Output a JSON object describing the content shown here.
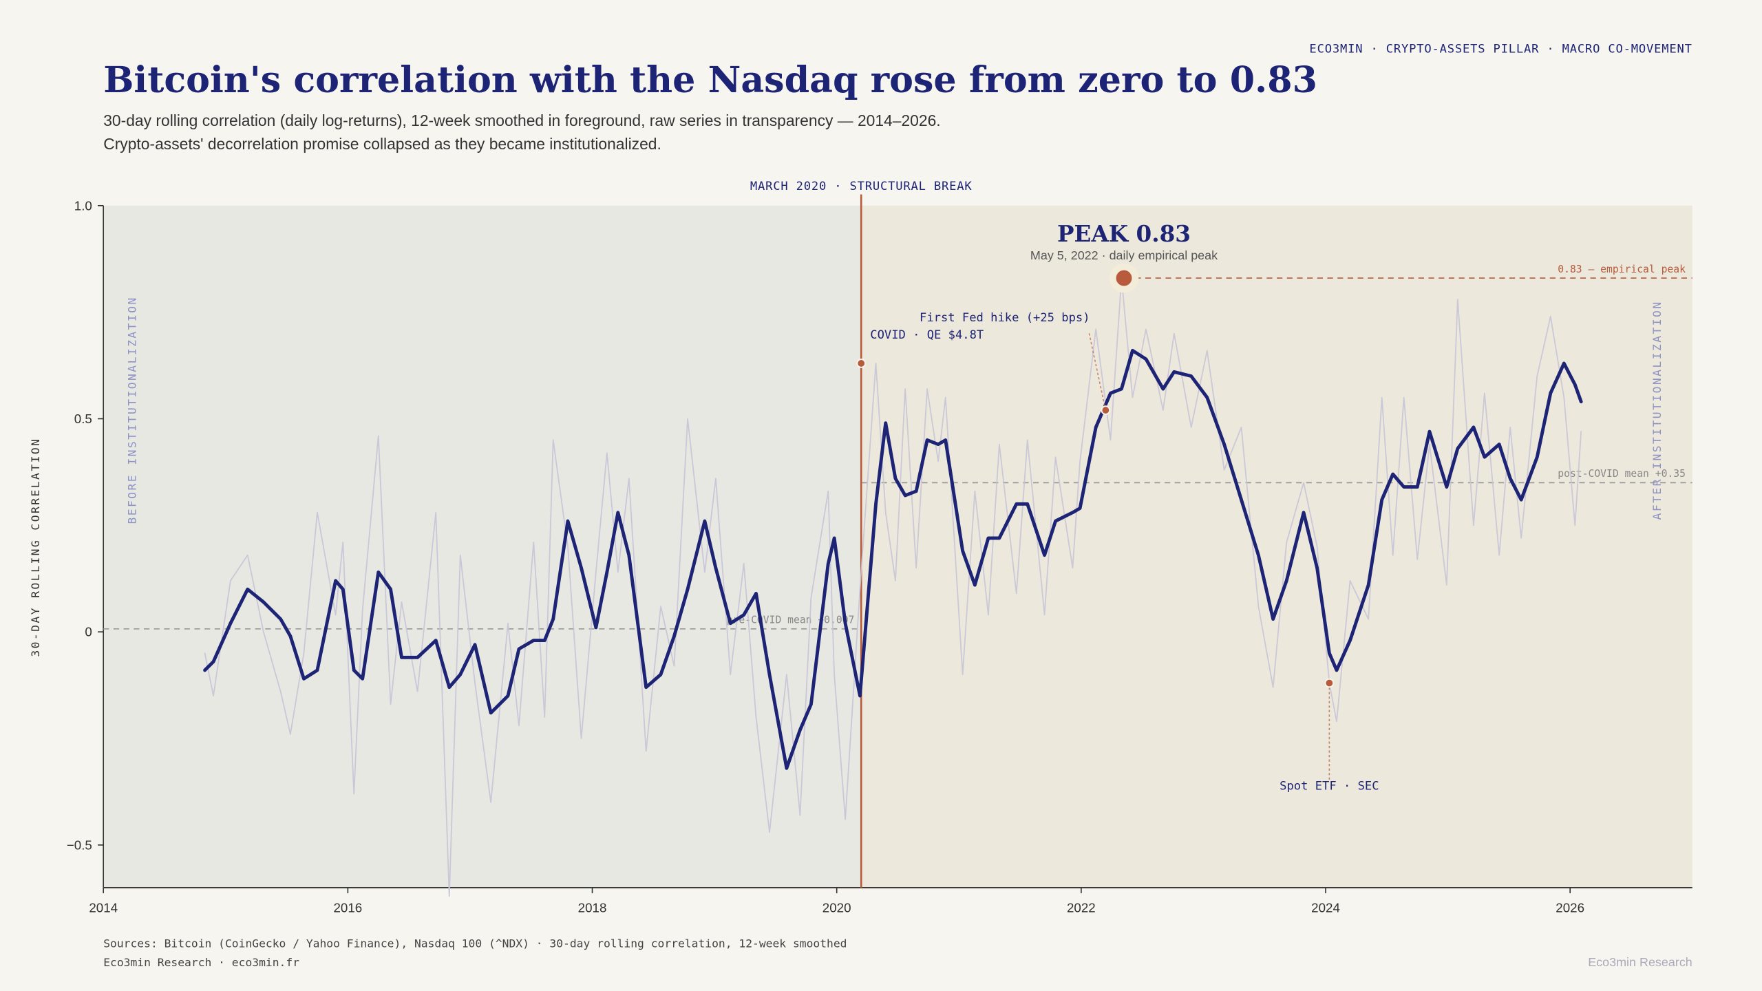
{
  "header": {
    "brand": "ECO3MIN · CRYPTO-ASSETS PILLAR · MACRO CO-MOVEMENT",
    "title": "Bitcoin's correlation with the Nasdaq rose from zero to 0.83",
    "subtitle": [
      "30-day rolling correlation (daily log-returns), 12-week smoothed in foreground, raw series in transparency — 2014–2026.",
      "Crypto-assets' decorrelation promise collapsed as they became institutionalized."
    ]
  },
  "chart_data": {
    "type": "line",
    "ylabel": "30-DAY ROLLING CORRELATION",
    "xlim": [
      2014,
      2027
    ],
    "xticks": [
      2014,
      2016,
      2018,
      2020,
      2022,
      2024,
      2026
    ],
    "ylim": [
      -0.6,
      1.0
    ],
    "yticks": [
      {
        "value": 1.0,
        "label": "1.0"
      },
      0.5,
      0,
      {
        "value": -0.5,
        "label": "−0.5"
      }
    ],
    "x": [
      2014.83,
      2014.9,
      2015.04,
      2015.18,
      2015.31,
      2015.45,
      2015.53,
      2015.64,
      2015.75,
      2015.9,
      2015.96,
      2016.05,
      2016.12,
      2016.25,
      2016.35,
      2016.44,
      2016.57,
      2016.72,
      2016.83,
      2016.92,
      2017.04,
      2017.17,
      2017.31,
      2017.4,
      2017.52,
      2017.61,
      2017.68,
      2017.8,
      2017.91,
      2018.03,
      2018.12,
      2018.21,
      2018.3,
      2018.44,
      2018.56,
      2018.67,
      2018.78,
      2018.92,
      2019.01,
      2019.13,
      2019.24,
      2019.34,
      2019.45,
      2019.59,
      2019.7,
      2019.79,
      2019.93,
      2019.98,
      2020.07,
      2020.19,
      2020.32,
      2020.4,
      2020.48,
      2020.56,
      2020.65,
      2020.74,
      2020.83,
      2020.89,
      2021.03,
      2021.13,
      2021.24,
      2021.33,
      2021.47,
      2021.56,
      2021.7,
      2021.79,
      2021.93,
      2021.99,
      2022.12,
      2022.24,
      2022.33,
      2022.42,
      2022.53,
      2022.67,
      2022.76,
      2022.9,
      2023.03,
      2023.17,
      2023.31,
      2023.45,
      2023.57,
      2023.68,
      2023.82,
      2023.93,
      2024.03,
      2024.09,
      2024.2,
      2024.35,
      2024.46,
      2024.55,
      2024.64,
      2024.75,
      2024.85,
      2024.99,
      2025.08,
      2025.21,
      2025.3,
      2025.42,
      2025.51,
      2025.6,
      2025.73,
      2025.84,
      2025.95,
      2026.04,
      2026.09
    ],
    "series": [
      {
        "color": "#c6c4d6",
        "values": [
          -0.05,
          -0.15,
          0.12,
          0.18,
          0.0,
          -0.14,
          -0.24,
          -0.05,
          0.28,
          0.04,
          0.21,
          -0.38,
          0.05,
          0.46,
          -0.17,
          0.07,
          -0.14,
          0.28,
          -0.62,
          0.18,
          -0.12,
          -0.4,
          0.02,
          -0.22,
          0.21,
          -0.2,
          0.45,
          0.2,
          -0.25,
          0.14,
          0.42,
          0.14,
          0.36,
          -0.28,
          0.06,
          -0.08,
          0.5,
          0.14,
          0.36,
          -0.1,
          0.16,
          -0.2,
          -0.47,
          -0.1,
          -0.43,
          0.08,
          0.33,
          -0.1,
          -0.44,
          0.1,
          0.63,
          0.28,
          0.12,
          0.57,
          0.15,
          0.57,
          0.4,
          0.55,
          -0.1,
          0.33,
          0.04,
          0.44,
          0.09,
          0.45,
          0.04,
          0.41,
          0.15,
          0.4,
          0.71,
          0.45,
          0.83,
          0.55,
          0.71,
          0.52,
          0.7,
          0.48,
          0.66,
          0.38,
          0.48,
          0.06,
          -0.13,
          0.21,
          0.35,
          0.2,
          -0.12,
          -0.21,
          0.12,
          0.03,
          0.55,
          0.18,
          0.55,
          0.17,
          0.44,
          0.11,
          0.78,
          0.25,
          0.56,
          0.18,
          0.48,
          0.22,
          0.6,
          0.74,
          0.55,
          0.25,
          0.47
        ]
      },
      {
        "color": "#1d2475",
        "values": [
          -0.09,
          -0.07,
          0.02,
          0.1,
          0.07,
          0.03,
          -0.01,
          -0.11,
          -0.09,
          0.12,
          0.1,
          -0.09,
          -0.11,
          0.14,
          0.1,
          -0.06,
          -0.06,
          -0.02,
          -0.13,
          -0.1,
          -0.03,
          -0.19,
          -0.15,
          -0.04,
          -0.02,
          -0.02,
          0.03,
          0.26,
          0.15,
          0.01,
          0.14,
          0.28,
          0.18,
          -0.13,
          -0.1,
          -0.01,
          0.1,
          0.26,
          0.15,
          0.02,
          0.04,
          0.09,
          -0.1,
          -0.32,
          -0.23,
          -0.17,
          0.16,
          0.22,
          0.02,
          -0.15,
          0.3,
          0.49,
          0.36,
          0.32,
          0.33,
          0.45,
          0.44,
          0.45,
          0.19,
          0.11,
          0.22,
          0.22,
          0.3,
          0.3,
          0.18,
          0.26,
          0.28,
          0.29,
          0.48,
          0.56,
          0.57,
          0.66,
          0.64,
          0.57,
          0.61,
          0.6,
          0.55,
          0.44,
          0.31,
          0.18,
          0.03,
          0.12,
          0.28,
          0.15,
          -0.05,
          -0.09,
          -0.02,
          0.11,
          0.31,
          0.37,
          0.34,
          0.34,
          0.47,
          0.34,
          0.43,
          0.48,
          0.41,
          0.44,
          0.36,
          0.31,
          0.41,
          0.56,
          0.63,
          0.58,
          0.54
        ]
      }
    ],
    "break": {
      "label": "MARCH 2020 · STRUCTURAL BREAK",
      "x": 2020.2,
      "color": "#b85a3c"
    },
    "regions": [
      {
        "label": "BEFORE INSTITUTIONALIZATION",
        "color": "#e8e8e3"
      },
      {
        "label": "AFTER INSTITUTIONALIZATION",
        "color": "#ede8dc"
      }
    ],
    "reference_lines": [
      {
        "label": "0.83 — empirical peak",
        "value": 0.83
      },
      {
        "label": "post-COVID mean +0.35",
        "value": 0.35
      },
      {
        "label": "pre-COVID mean +0.007",
        "value": 0.007
      }
    ],
    "peak": {
      "label": "PEAK 0.83",
      "note": "May 5, 2022 · daily empirical peak",
      "x": 2022.35,
      "y": 0.83
    },
    "annotations": [
      {
        "label": "COVID · QE $4.8T",
        "x": 2020.2,
        "y": 0.63
      },
      {
        "label": "First Fed hike (+25 bps)",
        "x": 2022.2,
        "y": 0.52
      },
      {
        "label": "Spot ETF · SEC",
        "x": 2024.03,
        "y": -0.12
      }
    ]
  },
  "footer": {
    "sources": "Sources: Bitcoin (CoinGecko / Yahoo Finance), Nasdaq 100 (^NDX) · 30-day rolling correlation, 12-week smoothed",
    "credit": "Eco3min Research · eco3min.fr",
    "brand": "Eco3min Research"
  }
}
